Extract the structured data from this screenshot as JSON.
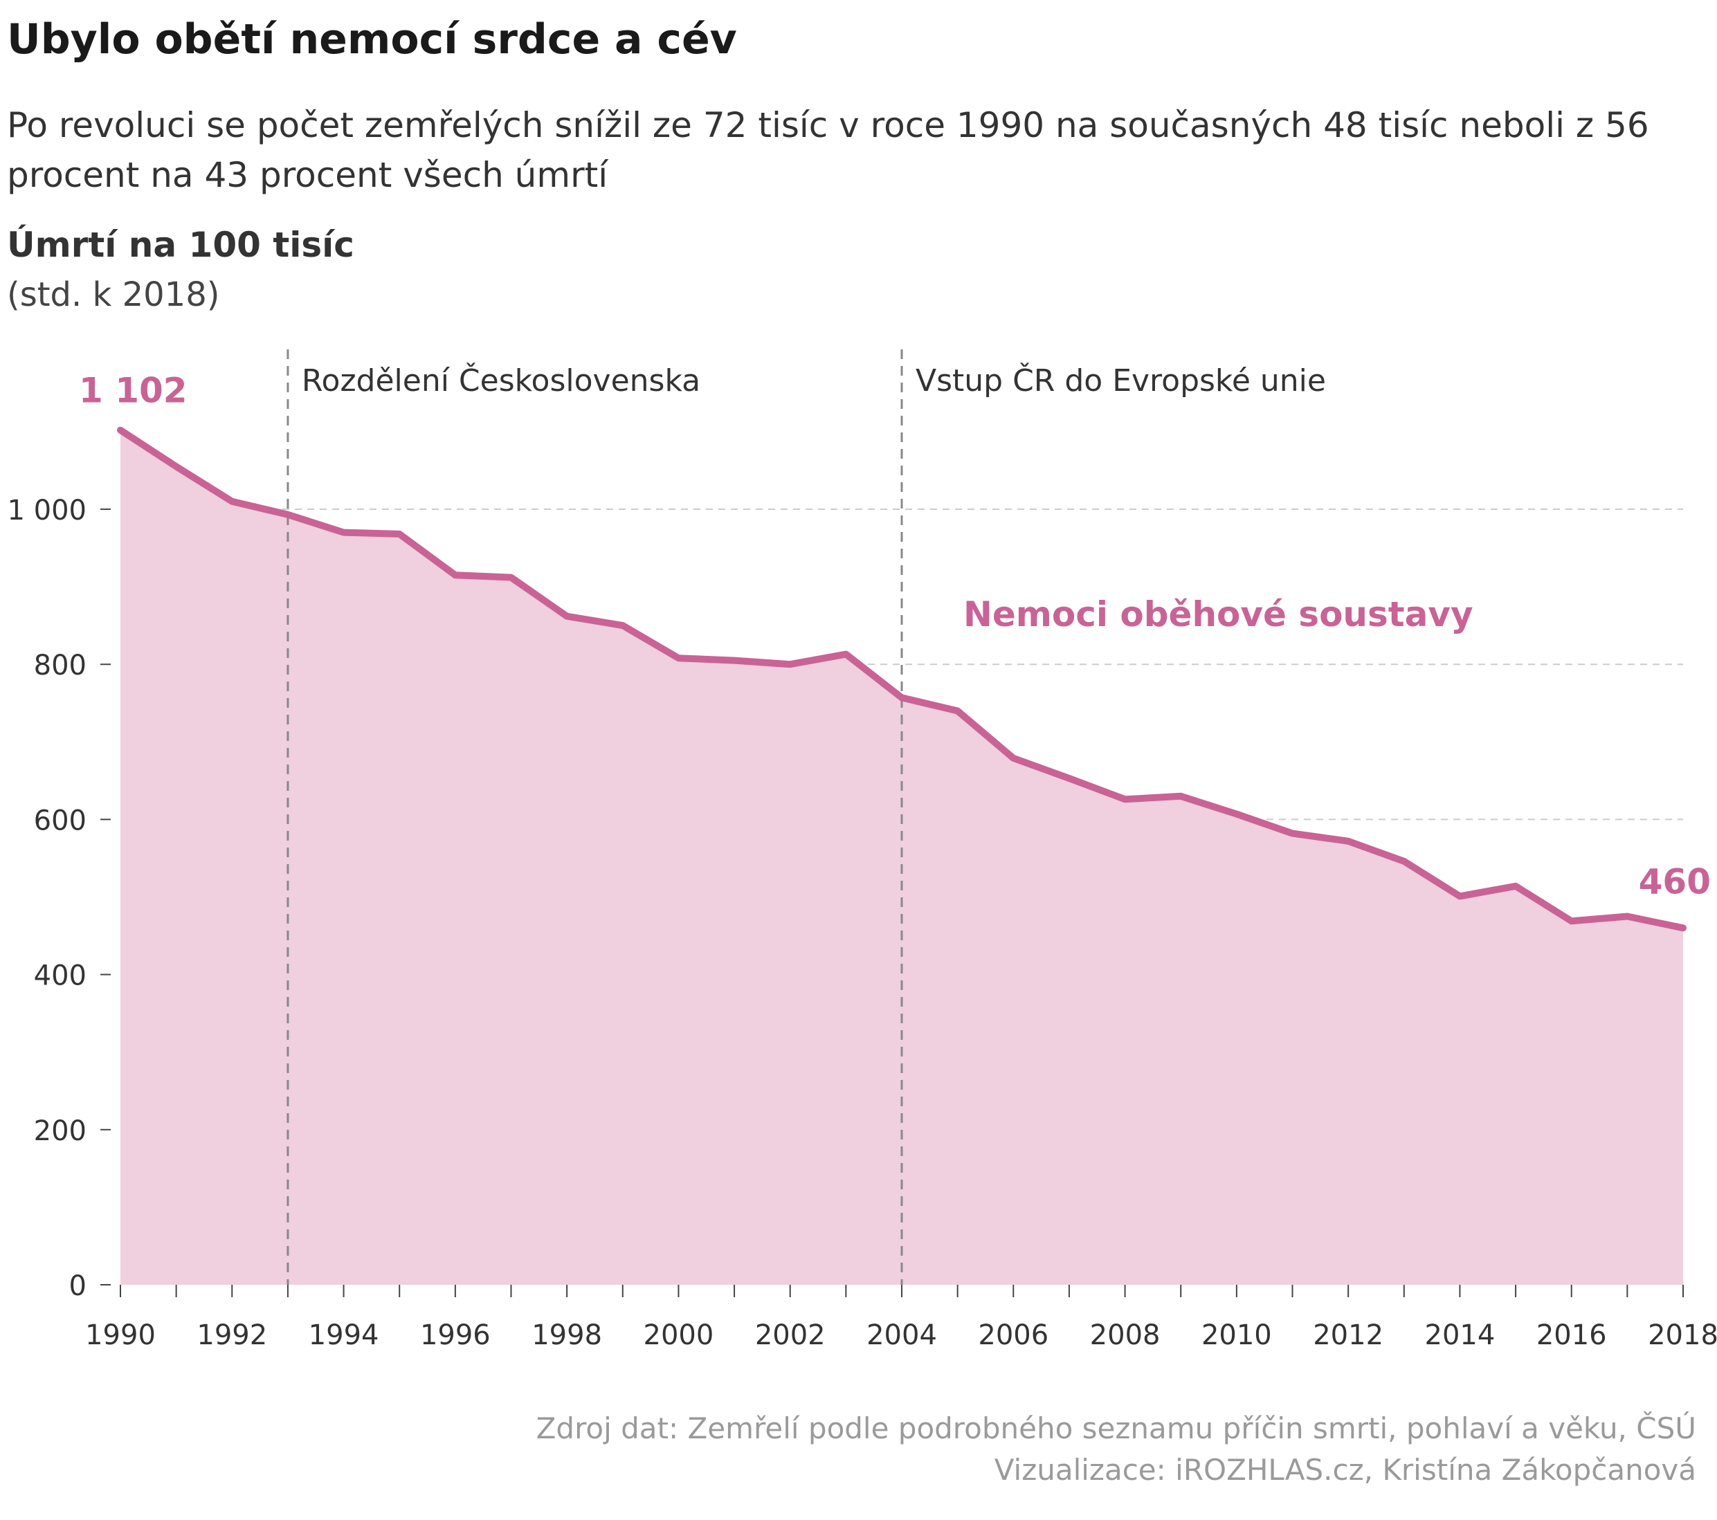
{
  "title": "Ubylo obětí nemocí srdce a cév",
  "subtitle": "Po revoluci se počet zemřelých snížil ze 72 tisíc v roce 1990 na současných 48 tisíc neboli z 56 procent na 43 procent všech úmrtí",
  "colors": {
    "line": "#c96396",
    "area": "#f0cfde",
    "grid": "#cccccc",
    "event": "#888888"
  },
  "footer": {
    "source": "Zdroj dat: Zemřelí podle podrobného seznamu příčin smrti, pohlaví a věku, ČSÚ",
    "credit": "Vizualizace: iROZHLAS.cz, Kristína Zákopčanová"
  },
  "chart_data": {
    "type": "area",
    "title": "Ubylo obětí nemocí srdce a cév",
    "ylabel": "Úmrtí na 100 tisíc",
    "ylabel_sub": "(std. k 2018)",
    "xlabel": "",
    "xlim": [
      1990,
      2018
    ],
    "ylim": [
      0,
      1102
    ],
    "yticks": [
      0,
      200,
      400,
      600,
      800,
      1000
    ],
    "ytick_labels": [
      "0",
      "200",
      "400",
      "600",
      "800",
      "1 000"
    ],
    "xticks": [
      1990,
      1992,
      1994,
      1996,
      1998,
      2000,
      2002,
      2004,
      2006,
      2008,
      2010,
      2012,
      2014,
      2016,
      2018
    ],
    "grid": "horizontal dashed",
    "series": [
      {
        "name": "Nemoci oběhové soustavy",
        "x": [
          1990,
          1991,
          1992,
          1993,
          1994,
          1995,
          1996,
          1997,
          1998,
          1999,
          2000,
          2001,
          2002,
          2003,
          2004,
          2005,
          2006,
          2007,
          2008,
          2009,
          2010,
          2011,
          2012,
          2013,
          2014,
          2015,
          2016,
          2017,
          2018
        ],
        "values": [
          1102,
          1055,
          1010,
          993,
          970,
          968,
          915,
          912,
          862,
          850,
          808,
          805,
          800,
          813,
          757,
          740,
          679,
          653,
          626,
          630,
          607,
          582,
          572,
          546,
          501,
          514,
          469,
          475,
          460
        ]
      }
    ],
    "annotations": [
      {
        "label": "1 102",
        "x": 1990,
        "y": 1102
      },
      {
        "label": "460",
        "x": 2018,
        "y": 460
      }
    ],
    "events": [
      {
        "x": 1993,
        "label": "Rozdělení Československa"
      },
      {
        "x": 2004,
        "label": "Vstup ČR do Evropské unie"
      }
    ]
  }
}
